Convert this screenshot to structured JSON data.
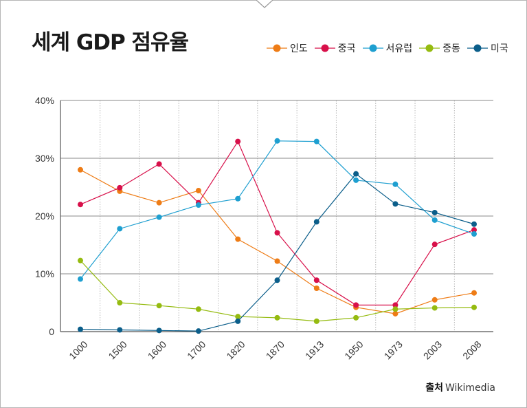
{
  "title": "세계 GDP 점유율",
  "source": {
    "label": "출처",
    "value": "Wikimedia"
  },
  "chart_data": {
    "type": "line",
    "title": "세계 GDP 점유율",
    "xlabel": "",
    "ylabel": "",
    "categories": [
      "1000",
      "1500",
      "1600",
      "1700",
      "1820",
      "1870",
      "1913",
      "1950",
      "1973",
      "2003",
      "2008"
    ],
    "y_ticks": [
      "0",
      "10%",
      "20%",
      "30%",
      "40%"
    ],
    "ylim": [
      0,
      40
    ],
    "grid": "horizontal solid, vertical dotted",
    "legend": "top-right",
    "series": [
      {
        "name": "인도",
        "color": "#ee7c16",
        "values": [
          28.0,
          24.3,
          22.3,
          24.4,
          16.0,
          12.2,
          7.5,
          4.2,
          3.1,
          5.5,
          6.7
        ]
      },
      {
        "name": "중국",
        "color": "#d8104a",
        "values": [
          22.0,
          24.9,
          29.0,
          22.3,
          32.9,
          17.1,
          8.9,
          4.6,
          4.6,
          15.1,
          17.6
        ]
      },
      {
        "name": "서유럽",
        "color": "#1e9fd0",
        "values": [
          9.1,
          17.8,
          19.8,
          21.9,
          23.0,
          33.0,
          32.9,
          26.2,
          25.5,
          19.3,
          16.9
        ]
      },
      {
        "name": "중동",
        "color": "#95bb10",
        "values": [
          12.3,
          5.0,
          4.5,
          3.9,
          2.6,
          2.4,
          1.8,
          2.4,
          3.9,
          4.1,
          4.2
        ]
      },
      {
        "name": "미국",
        "color": "#0b5e8a",
        "values": [
          0.4,
          0.3,
          0.2,
          0.1,
          1.8,
          8.9,
          19.0,
          27.3,
          22.1,
          20.6,
          18.6
        ]
      }
    ]
  }
}
